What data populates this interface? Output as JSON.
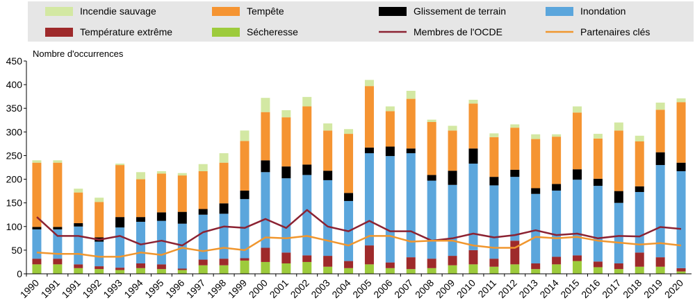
{
  "chart_data": {
    "type": "bar",
    "stacked": true,
    "ylabel": "Nombre d'occurrences",
    "ylim": [
      0,
      450
    ],
    "yticks": [
      0,
      50,
      100,
      150,
      200,
      250,
      300,
      350,
      400,
      450
    ],
    "grid": false,
    "legend_position": "top",
    "categories": [
      "1990",
      "1991",
      "1991",
      "1992",
      "1993",
      "1994",
      "1995",
      "1996",
      "1997",
      "1998",
      "1999",
      "2000",
      "2001",
      "2002",
      "2003",
      "2004",
      "2005",
      "2006",
      "2007",
      "2008",
      "2009",
      "2010",
      "2011",
      "2012",
      "2013",
      "2014",
      "2015",
      "2016",
      "2017",
      "2018",
      "2019",
      "2020"
    ],
    "series": [
      {
        "name": "Sécheresse",
        "kind": "bar",
        "color": "#9dcb3c",
        "values": [
          20,
          20,
          12,
          10,
          8,
          12,
          10,
          8,
          18,
          18,
          28,
          25,
          22,
          25,
          15,
          12,
          20,
          12,
          10,
          12,
          18,
          20,
          15,
          20,
          10,
          20,
          27,
          14,
          10,
          15,
          15,
          5
        ]
      },
      {
        "name": "Température extrême",
        "kind": "bar",
        "color": "#9e2a2b",
        "values": [
          12,
          12,
          8,
          6,
          5,
          10,
          10,
          3,
          12,
          14,
          5,
          30,
          23,
          14,
          23,
          15,
          40,
          12,
          25,
          20,
          20,
          30,
          17,
          50,
          12,
          16,
          12,
          12,
          12,
          30,
          20,
          7
        ]
      },
      {
        "name": "Inondation",
        "kind": "bar",
        "color": "#5ba6dc",
        "values": [
          62,
          62,
          80,
          52,
          85,
          88,
          92,
          95,
          95,
          95,
          125,
          160,
          157,
          170,
          160,
          127,
          195,
          225,
          220,
          165,
          150,
          183,
          155,
          135,
          147,
          140,
          160,
          160,
          128,
          128,
          195,
          205
        ]
      },
      {
        "name": "Glissement de terrain",
        "kind": "bar",
        "color": "#000000",
        "values": [
          5,
          5,
          7,
          9,
          22,
          10,
          18,
          25,
          12,
          22,
          18,
          25,
          25,
          22,
          20,
          17,
          12,
          20,
          10,
          12,
          30,
          32,
          18,
          15,
          12,
          14,
          22,
          15,
          25,
          12,
          27,
          18
        ]
      },
      {
        "name": "Tempête",
        "kind": "bar",
        "color": "#f59432",
        "values": [
          136,
          136,
          65,
          75,
          110,
          80,
          82,
          77,
          80,
          86,
          105,
          102,
          104,
          123,
          85,
          125,
          130,
          75,
          105,
          112,
          85,
          95,
          84,
          89,
          104,
          100,
          120,
          85,
          128,
          95,
          90,
          128
        ]
      },
      {
        "name": "Incendie sauvage",
        "kind": "bar",
        "color": "#d3e8a3",
        "values": [
          5,
          5,
          8,
          9,
          3,
          15,
          5,
          5,
          15,
          20,
          22,
          30,
          15,
          20,
          15,
          10,
          13,
          10,
          17,
          5,
          10,
          8,
          8,
          7,
          10,
          5,
          13,
          10,
          17,
          12,
          15,
          8
        ]
      },
      {
        "name": "Membres de l'OCDE",
        "kind": "line",
        "color": "#8b2232",
        "values": [
          120,
          80,
          80,
          72,
          80,
          62,
          70,
          60,
          88,
          100,
          97,
          116,
          97,
          135,
          100,
          90,
          112,
          90,
          90,
          70,
          75,
          85,
          77,
          82,
          92,
          82,
          85,
          75,
          80,
          79,
          99,
          95
        ]
      },
      {
        "name": "Partenaires clés",
        "kind": "line",
        "color": "#f0962e",
        "values": [
          45,
          42,
          42,
          36,
          36,
          45,
          40,
          55,
          48,
          55,
          50,
          77,
          75,
          80,
          70,
          60,
          80,
          80,
          68,
          70,
          70,
          60,
          55,
          55,
          78,
          75,
          78,
          70,
          66,
          62,
          65,
          60
        ]
      }
    ]
  },
  "legend": {
    "labels": [
      "Incendie sauvage",
      "Tempête",
      "Glissement de terrain",
      "Inondation",
      "Température extrême",
      "Sécheresse",
      "Membres de l'OCDE",
      "Partenaires clés"
    ]
  }
}
